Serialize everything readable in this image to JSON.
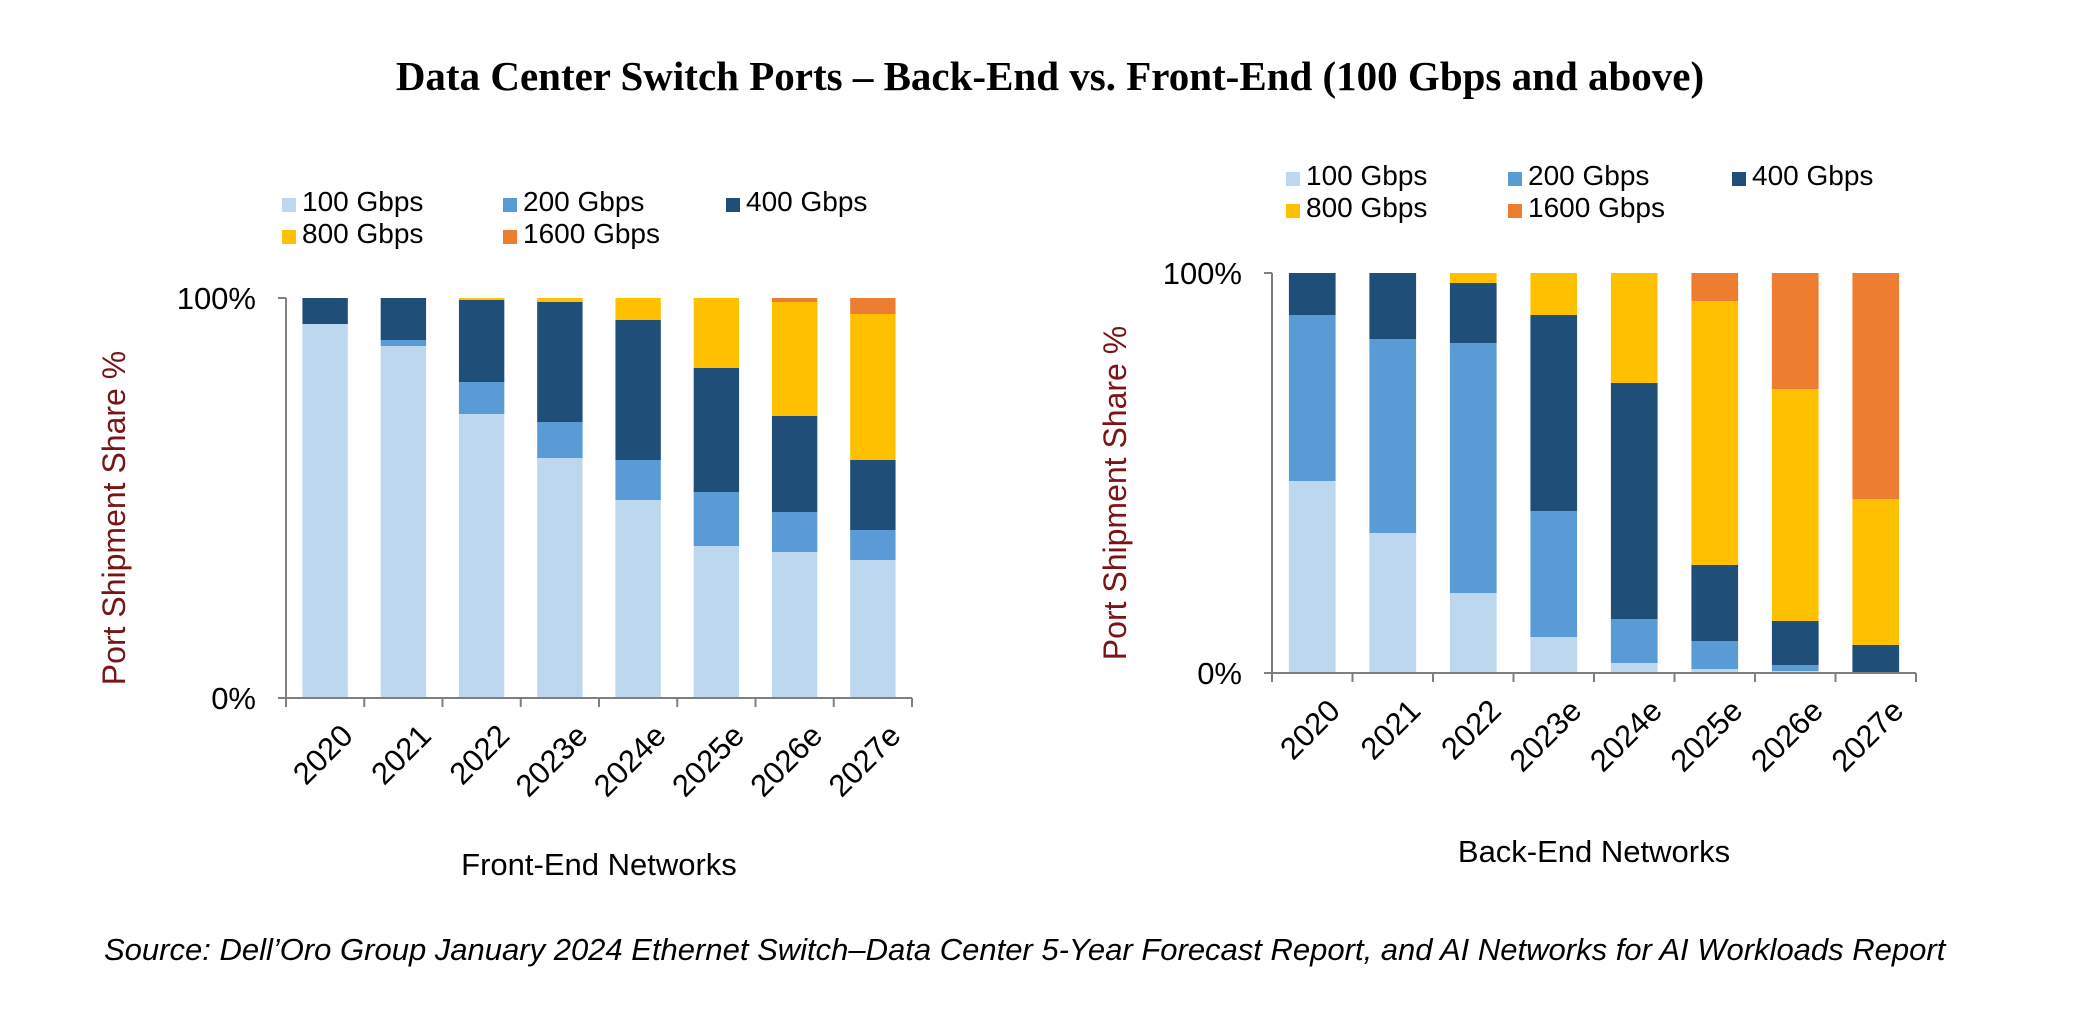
{
  "title": "Data Center Switch Ports – Back-End vs. Front-End (100 Gbps and above)",
  "source": "Source: Dell’Oro Group January 2024 Ethernet Switch–Data Center 5-Year Forecast Report, and AI Networks for AI Workloads Report",
  "colors": {
    "100 Gbps": "#bdd7ee",
    "200 Gbps": "#5b9bd5",
    "400 Gbps": "#1f4e79",
    "800 Gbps": "#ffc000",
    "1600 Gbps": "#ed7d31",
    "ylabel": "#7a1416"
  },
  "chart_data": [
    {
      "type": "bar",
      "stacked": true,
      "xlabel": "Front-End Networks",
      "ylabel": "Port  Shipment Share %",
      "ylim": [
        0,
        100
      ],
      "yticks": [
        "0%",
        "100%"
      ],
      "legend_position": "top",
      "categories": [
        "2020",
        "2021",
        "2022",
        "2023e",
        "2024e",
        "2025e",
        "2026e",
        "2027e"
      ],
      "series": [
        {
          "name": "100 Gbps",
          "values": [
            93.5,
            88,
            71,
            60,
            49.5,
            38,
            36.5,
            34.5
          ]
        },
        {
          "name": "200 Gbps",
          "values": [
            0,
            1.5,
            8,
            9,
            10,
            13.5,
            10,
            7.5
          ]
        },
        {
          "name": "400 Gbps",
          "values": [
            6.5,
            10.5,
            20.5,
            30,
            35,
            31,
            24,
            17.5
          ]
        },
        {
          "name": "800 Gbps",
          "values": [
            0,
            0,
            0.5,
            1,
            5.5,
            17.5,
            28.5,
            36.5
          ]
        },
        {
          "name": "1600 Gbps",
          "values": [
            0,
            0,
            0,
            0,
            0,
            0,
            1,
            4
          ]
        }
      ]
    },
    {
      "type": "bar",
      "stacked": true,
      "xlabel": "Back-End Networks",
      "ylabel": "Port  Shipment Share %",
      "ylim": [
        0,
        100
      ],
      "yticks": [
        "0%",
        "100%"
      ],
      "legend_position": "top",
      "categories": [
        "2020",
        "2021",
        "2022",
        "2023e",
        "2024e",
        "2025e",
        "2026e",
        "2027e"
      ],
      "series": [
        {
          "name": "100 Gbps",
          "values": [
            48,
            35,
            20,
            9,
            2.5,
            1,
            0.5,
            0
          ]
        },
        {
          "name": "200 Gbps",
          "values": [
            41.5,
            48.5,
            62.5,
            31.5,
            11,
            7,
            1.5,
            0
          ]
        },
        {
          "name": "400 Gbps",
          "values": [
            10.5,
            16.5,
            15,
            49,
            59,
            19,
            11,
            7
          ]
        },
        {
          "name": "800 Gbps",
          "values": [
            0,
            0,
            2.5,
            10.5,
            27.5,
            66,
            58,
            36.5
          ]
        },
        {
          "name": "1600 Gbps",
          "values": [
            0,
            0,
            0,
            0,
            0,
            7,
            29,
            56.5
          ]
        }
      ]
    }
  ]
}
